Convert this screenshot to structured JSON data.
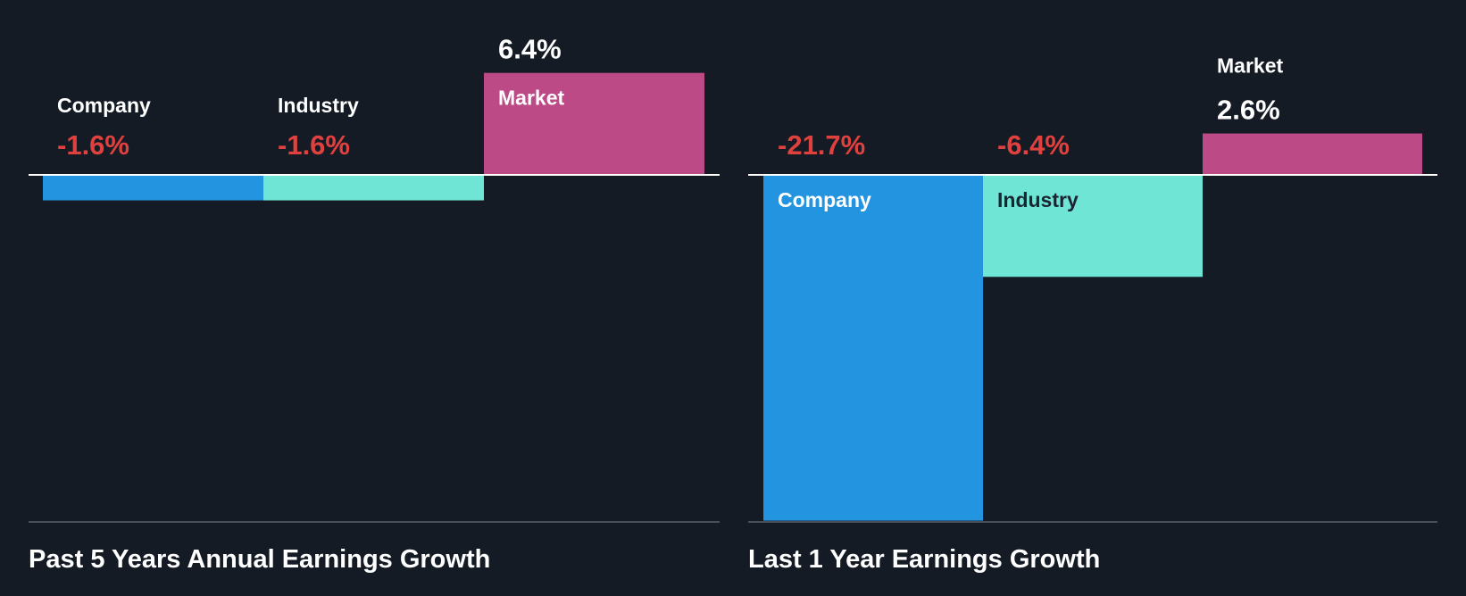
{
  "colors": {
    "background": "#151b24",
    "company": "#2394e0",
    "industry": "#6fe5d6",
    "market": "#bb4a87",
    "negative_text": "#e0413f",
    "positive_text": "#ffffff",
    "label_text": "#ffffff",
    "label_text_on_light": "#1b2430",
    "axis": "#ffffff",
    "baseline": "#4a4f57"
  },
  "chart_data": [
    {
      "type": "bar",
      "title": "Past 5 Years Annual Earnings Growth",
      "categories": [
        "Company",
        "Industry",
        "Market"
      ],
      "values": [
        -1.6,
        -1.6,
        6.4
      ],
      "value_labels": [
        "-1.6%",
        "-1.6%",
        "6.4%"
      ],
      "unit": "%",
      "grid": false,
      "legend": "none"
    },
    {
      "type": "bar",
      "title": "Last 1 Year Earnings Growth",
      "categories": [
        "Company",
        "Industry",
        "Market"
      ],
      "values": [
        -21.7,
        -6.4,
        2.6
      ],
      "value_labels": [
        "-21.7%",
        "-6.4%",
        "2.6%"
      ],
      "unit": "%",
      "grid": false,
      "legend": "none"
    }
  ]
}
